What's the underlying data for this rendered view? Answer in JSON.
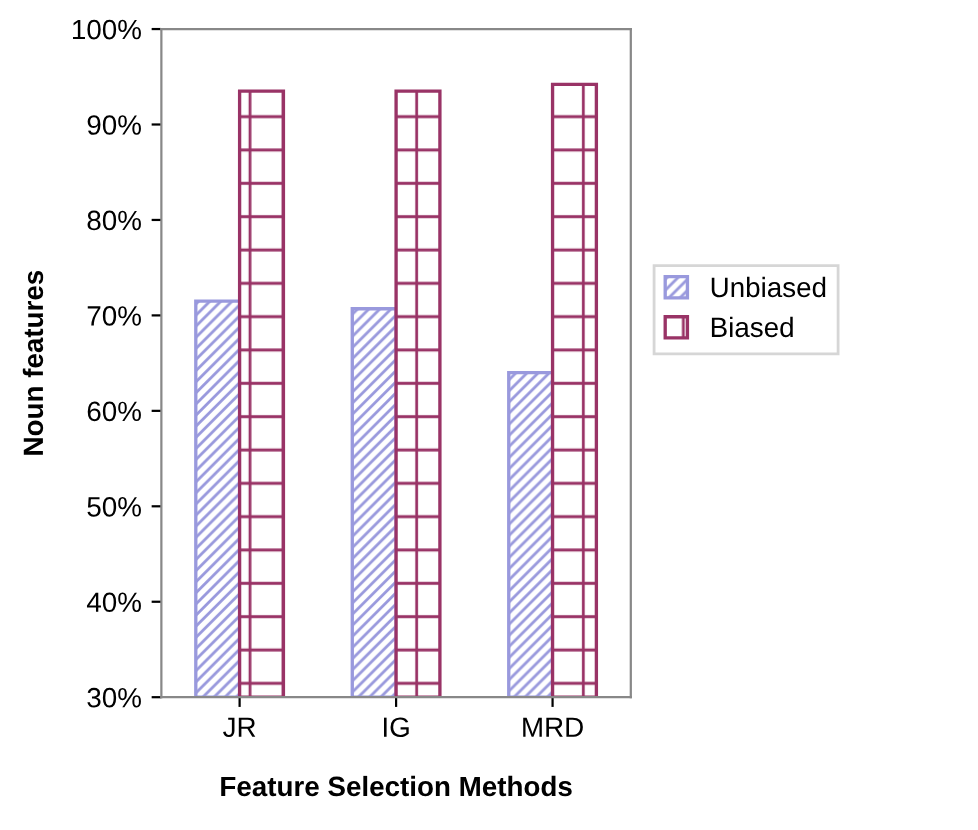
{
  "chart_data": {
    "type": "bar",
    "xlabel": "Feature Selection Methods",
    "ylabel": "Noun features",
    "categories": [
      "JR",
      "IG",
      "MRD"
    ],
    "series": [
      {
        "name": "Unbiased",
        "color": "#9999dd",
        "values": [
          71.5,
          70.7,
          64
        ]
      },
      {
        "name": "Biased",
        "color": "#993366",
        "values": [
          93.5,
          93.5,
          94.2
        ]
      }
    ],
    "ylim": [
      30,
      100
    ],
    "yticks": [
      {
        "value": 30,
        "label": "30%"
      },
      {
        "value": 40,
        "label": "40%"
      },
      {
        "value": 50,
        "label": "50%"
      },
      {
        "value": 60,
        "label": "60%"
      },
      {
        "value": 70,
        "label": "70%"
      },
      {
        "value": 80,
        "label": "80%"
      },
      {
        "value": 90,
        "label": "90%"
      },
      {
        "value": 100,
        "label": "100%"
      }
    ],
    "grid": false,
    "legend": "right"
  }
}
